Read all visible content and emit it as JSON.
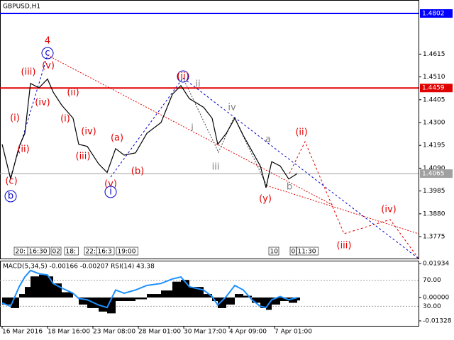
{
  "chart_data": [
    {
      "type": "line",
      "title": "GBPUSD,H1",
      "x": [
        0,
        3,
        6,
        8,
        10,
        13,
        16,
        18,
        21,
        25,
        27,
        30,
        34,
        37,
        40,
        43,
        47,
        51,
        56,
        60,
        63,
        66,
        71,
        74,
        76,
        79,
        82,
        85,
        88,
        91,
        93,
        95,
        98,
        101,
        104
      ],
      "values": [
        1.42,
        1.404,
        1.419,
        1.425,
        1.448,
        1.446,
        1.45,
        1.444,
        1.438,
        1.432,
        1.42,
        1.419,
        1.411,
        1.407,
        1.418,
        1.415,
        1.416,
        1.425,
        1.43,
        1.443,
        1.447,
        1.441,
        1.437,
        1.432,
        1.42,
        1.425,
        1.432,
        1.424,
        1.417,
        1.41,
        1.4,
        1.412,
        1.41,
        1.404,
        1.4065
      ],
      "color": "#000000",
      "xlim": [
        -0.75,
        146.75
      ],
      "ylim": [
        1.3674,
        1.4864
      ],
      "yticks": [
        1.4615,
        {
          "value": 1.451,
          "label": "1.4510"
        },
        1.4405,
        {
          "value": 1.43,
          "label": "1.4300"
        },
        1.4195,
        {
          "value": 1.409,
          "label": "1.4090"
        },
        1.3985,
        {
          "value": 1.388,
          "label": "1.3880"
        },
        1.3775
      ],
      "price_lines": [
        {
          "value": 1.4802,
          "color": "#0000ff"
        },
        {
          "value": 1.4459,
          "color": "#e00000"
        },
        {
          "value": 1.4065,
          "color": "#a0a0a0"
        }
      ],
      "time_boxes": [
        "20:",
        "16:30",
        "02",
        "18:",
        "22:",
        "16:3",
        "19:00",
        "10",
        "0",
        "11:30"
      ],
      "annotations": [
        {
          "text": "4",
          "color": "#e00000"
        },
        {
          "text": "c",
          "color": "#0000cc"
        },
        {
          "text": "(iii)",
          "color": "#e00000"
        },
        {
          "text": "(v)",
          "color": "#e00000"
        },
        {
          "text": "(iv)",
          "color": "#e00000"
        },
        {
          "text": "(ii)",
          "color": "#e00000"
        },
        {
          "text": "(i)",
          "color": "#e00000"
        },
        {
          "text": "(i)",
          "color": "#e00000"
        },
        {
          "text": "(ii)",
          "color": "#e00000"
        },
        {
          "text": "(c)",
          "color": "#e00000"
        },
        {
          "text": "b",
          "color": "#0000cc"
        },
        {
          "text": "(iv)",
          "color": "#e00000"
        },
        {
          "text": "(iii)",
          "color": "#e00000"
        },
        {
          "text": "(a)",
          "color": "#e00000"
        },
        {
          "text": "(b)",
          "color": "#e00000"
        },
        {
          "text": "(v)",
          "color": "#e00000"
        },
        {
          "text": "i",
          "color": "#0000cc"
        },
        {
          "text": "(ii)",
          "color": "#e00000"
        },
        {
          "text": "ii",
          "color": "#808080"
        },
        {
          "text": "i",
          "color": "#808080"
        },
        {
          "text": "iii",
          "color": "#808080"
        },
        {
          "text": "iv",
          "color": "#808080"
        },
        {
          "text": "a",
          "color": "#808080"
        },
        {
          "text": "b",
          "color": "#808080"
        },
        {
          "text": "(y)",
          "color": "#e00000"
        },
        {
          "text": "(ii)",
          "color": "#e00000"
        },
        {
          "text": "(iv)",
          "color": "#e00000"
        },
        {
          "text": "(iii)",
          "color": "#e00000"
        }
      ]
    },
    {
      "type": "indicator",
      "title": "MACD(5,34,5) -0.00166 -0.00207 RSI(14) 43.38",
      "x": [
        0,
        3,
        6,
        8,
        10,
        13,
        16,
        18,
        21,
        25,
        27,
        30,
        34,
        37,
        40,
        43,
        47,
        51,
        56,
        60,
        63,
        66,
        71,
        74,
        76,
        79,
        82,
        85,
        88,
        91,
        93,
        95,
        98,
        101,
        104
      ],
      "series": [
        {
          "color": "#000000",
          "values": [
            -0.004,
            -0.006,
            0.002,
            0.006,
            0.012,
            0.013,
            0.012,
            0.008,
            0.003,
            0.0,
            -0.004,
            -0.006,
            -0.008,
            -0.009,
            -0.002,
            -0.002,
            -0.001,
            0.002,
            0.004,
            0.009,
            0.01,
            0.006,
            0.002,
            -0.002,
            -0.006,
            -0.004,
            0.002,
            0.001,
            -0.003,
            -0.006,
            -0.007,
            -0.004,
            -0.002,
            -0.003,
            -0.00166
          ]
        },
        {
          "color": "#1e90ff",
          "axis": "y2",
          "values": [
            35,
            30,
            60,
            75,
            85,
            80,
            78,
            65,
            58,
            50,
            42,
            40,
            32,
            28,
            55,
            50,
            55,
            62,
            65,
            72,
            75,
            60,
            55,
            45,
            32,
            45,
            62,
            55,
            40,
            30,
            28,
            40,
            45,
            40,
            43.38
          ]
        }
      ],
      "xlim": [
        -0.75,
        146.75
      ],
      "ylim": [
        -0.0161,
        0.02095
      ],
      "yticks": [
        0.01934,
        {
          "value": 0,
          "label": "0.00000"
        },
        -0.01328
      ],
      "y2lim": [
        0,
        100
      ],
      "y2ticks": [
        {
          "value": 70,
          "label": "70.00"
        },
        {
          "value": 30,
          "label": "30.00"
        }
      ],
      "xticks": [
        {
          "value": 0,
          "label": "16 Mar 2016"
        },
        {
          "value": 16,
          "label": "18 Mar 16:00"
        },
        {
          "value": 32,
          "label": "23 Mar 08:00"
        },
        {
          "value": 48,
          "label": "28 Mar 01:00"
        },
        {
          "value": 64,
          "label": "30 Mar 17:00"
        },
        {
          "value": 80,
          "label": "4 Apr 09:00"
        },
        {
          "value": 96,
          "label": "7 Apr 01:00"
        }
      ]
    }
  ]
}
